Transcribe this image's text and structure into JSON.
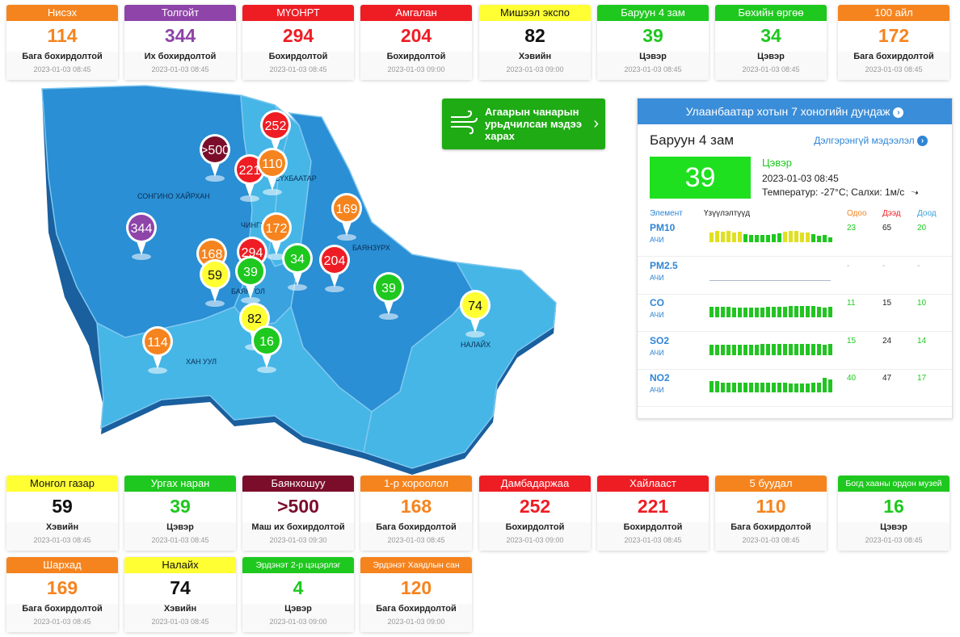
{
  "top_cards": [
    {
      "name": "Нисэх",
      "value": "114",
      "status": "Бага бохирдолтой",
      "time": "2023-01-03 08:45",
      "color": "orange"
    },
    {
      "name": "Толгойт",
      "value": "344",
      "status": "Их бохирдолтой",
      "time": "2023-01-03 08:45",
      "color": "purple"
    },
    {
      "name": "МҮОНРТ",
      "value": "294",
      "status": "Бохирдолтой",
      "time": "2023-01-03 08:45",
      "color": "red"
    },
    {
      "name": "Амгалан",
      "value": "204",
      "status": "Бохирдолтой",
      "time": "2023-01-03 09:00",
      "color": "red"
    },
    {
      "name": "Мишээл экспо",
      "value": "82",
      "status": "Хэвийн",
      "time": "2023-01-03 09:00",
      "color": "yellow"
    },
    {
      "name": "Баруун 4 зам",
      "value": "39",
      "status": "Цэвэр",
      "time": "2023-01-03 08:45",
      "color": "green"
    },
    {
      "name": "Бөхийн өргөө",
      "value": "34",
      "status": "Цэвэр",
      "time": "2023-01-03 08:45",
      "color": "green"
    },
    {
      "name": "100 айл",
      "value": "172",
      "status": "Бага бохирдолтой",
      "time": "2023-01-03 08:45",
      "color": "orange"
    }
  ],
  "bottom_cards_row1": [
    {
      "name": "Монгол газар",
      "value": "59",
      "status": "Хэвийн",
      "time": "2023-01-03 08:45",
      "color": "yellow"
    },
    {
      "name": "Ургах наран",
      "value": "39",
      "status": "Цэвэр",
      "time": "2023-01-03 08:45",
      "color": "green"
    },
    {
      "name": "Баянхошуу",
      "value": ">500",
      "status": "Маш их бохирдолтой",
      "time": "2023-01-03 09:30",
      "color": "maroon"
    },
    {
      "name": "1-р хороолол",
      "value": "168",
      "status": "Бага бохирдолтой",
      "time": "2023-01-03 08:45",
      "color": "orange"
    },
    {
      "name": "Дамбадаржаа",
      "value": "252",
      "status": "Бохирдолтой",
      "time": "2023-01-03 09:00",
      "color": "red"
    },
    {
      "name": "Хайлааст",
      "value": "221",
      "status": "Бохирдолтой",
      "time": "2023-01-03 08:45",
      "color": "red"
    },
    {
      "name": "5 буудал",
      "value": "110",
      "status": "Бага бохирдолтой",
      "time": "2023-01-03 08:45",
      "color": "orange"
    },
    {
      "name": "Богд хааны ордон музей",
      "value": "16",
      "status": "Цэвэр",
      "time": "2023-01-03 08:45",
      "color": "green"
    }
  ],
  "bottom_cards_row2": [
    {
      "name": "Шархад",
      "value": "169",
      "status": "Бага бохирдолтой",
      "time": "2023-01-03 08:45",
      "color": "orange"
    },
    {
      "name": "Налайх",
      "value": "74",
      "status": "Хэвийн",
      "time": "2023-01-03 08:45",
      "color": "yellow"
    },
    {
      "name": "Эрдэнэт 2-р цэцэрлэг",
      "value": "4",
      "status": "Цэвэр",
      "time": "2023-01-03 09:00",
      "color": "green"
    },
    {
      "name": "Эрдэнэт Хаядлын сан",
      "value": "120",
      "status": "Бага бохирдолтой",
      "time": "2023-01-03 09:00",
      "color": "orange"
    }
  ],
  "colors": {
    "orange": "#f5841f",
    "purple": "#8e44a8",
    "red": "#ee1d24",
    "yellow": "#ffff33",
    "green": "#1ec81e",
    "maroon": "#7b0d2b",
    "map_blue": "#2a8fd4",
    "map_light": "#45b6e6"
  },
  "map": {
    "districts": [
      "СОНГИНО ХАЙРХАН",
      "ЧИНГЭЛТЭЙ",
      "БАЯНЗҮРХ",
      "БАЯНГОЛ",
      "ХАН УУЛ",
      "НАЛАЙХ",
      "СҮХБААТАР"
    ],
    "pins": [
      {
        "label": "252",
        "color": "red"
      },
      {
        "label": ">500",
        "color": "maroon"
      },
      {
        "label": "221",
        "color": "red"
      },
      {
        "label": "110",
        "color": "orange"
      },
      {
        "label": "344",
        "color": "purple"
      },
      {
        "label": "172",
        "color": "orange"
      },
      {
        "label": "169",
        "color": "orange"
      },
      {
        "label": "168",
        "color": "orange"
      },
      {
        "label": "294",
        "color": "red"
      },
      {
        "label": "39",
        "color": "green"
      },
      {
        "label": "59",
        "color": "yellow"
      },
      {
        "label": "34",
        "color": "green"
      },
      {
        "label": "204",
        "color": "red"
      },
      {
        "label": "39",
        "color": "green"
      },
      {
        "label": "82",
        "color": "yellow"
      },
      {
        "label": "114",
        "color": "orange"
      },
      {
        "label": "16",
        "color": "green"
      },
      {
        "label": "74",
        "color": "yellow"
      }
    ]
  },
  "forecast": {
    "label": "Агаарын чанарын урьдчилсан мэдээ харах",
    "icon": "wind-icon"
  },
  "panel": {
    "header": "Улаанбаатар хотын 7 хоногийн дундаж",
    "station": "Баруун 4 зам",
    "more_link": "Дэлгэрэнгүй мэдээлэл",
    "aqi": "39",
    "level": "Цэвэр",
    "time": "2023-01-03 08:45",
    "weather": "Температур: -27°C; Салхи: 1м/с",
    "wind_icon": "wind-direction-arrow-icon",
    "columns": {
      "element": "Элемент",
      "indicators": "Үзүүлэлтүүд",
      "now": "Одоо",
      "max": "Дээд",
      "min": "Доод"
    },
    "column_colors": {
      "now": "#f5841f",
      "max": "#ee1d24",
      "min": "#3aa0d8"
    },
    "elements": [
      {
        "name": "PM10",
        "unit": "АЧИ",
        "now": "23",
        "max": "65",
        "min": "20",
        "bar_color": "mixed"
      },
      {
        "name": "PM2.5",
        "unit": "АЧИ",
        "now": "-",
        "max": "-",
        "min": "-",
        "bar_color": "none"
      },
      {
        "name": "CO",
        "unit": "АЧИ",
        "now": "11",
        "max": "15",
        "min": "10",
        "bar_color": "green"
      },
      {
        "name": "SO2",
        "unit": "АЧИ",
        "now": "15",
        "max": "24",
        "min": "14",
        "bar_color": "green"
      },
      {
        "name": "NO2",
        "unit": "АЧИ",
        "now": "40",
        "max": "47",
        "min": "17",
        "bar_color": "green"
      }
    ]
  }
}
